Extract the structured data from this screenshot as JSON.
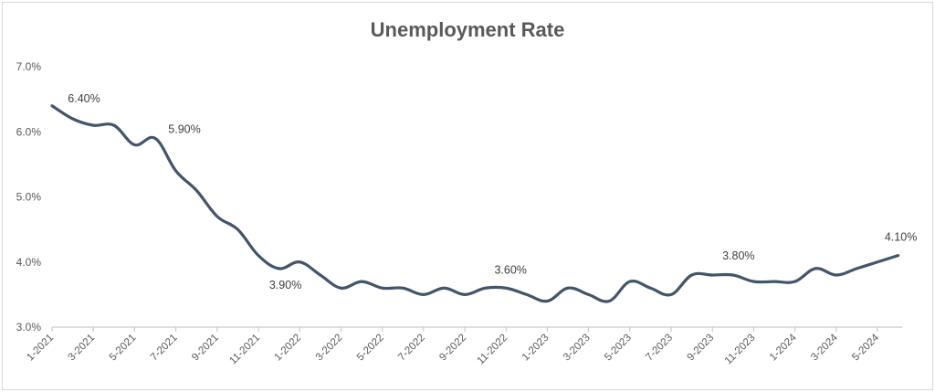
{
  "chart_data": {
    "type": "line",
    "title": "Unemployment Rate",
    "xlabel": "",
    "ylabel": "",
    "ylim": [
      3.0,
      7.0
    ],
    "yticks": [
      "3.0%",
      "4.0%",
      "5.0%",
      "6.0%",
      "7.0%"
    ],
    "grid": false,
    "legend": "none",
    "line_color": "#44546A",
    "x_tick_labels": [
      "1-2021",
      "3-2021",
      "5-2021",
      "7-2021",
      "9-2021",
      "11-2021",
      "1-2022",
      "3-2022",
      "5-2022",
      "7-2022",
      "9-2022",
      "11-2022",
      "1-2023",
      "3-2023",
      "5-2023",
      "7-2023",
      "9-2023",
      "11-2023",
      "1-2024",
      "3-2024",
      "5-2024"
    ],
    "x": [
      "1-2021",
      "2-2021",
      "3-2021",
      "4-2021",
      "5-2021",
      "6-2021",
      "7-2021",
      "8-2021",
      "9-2021",
      "10-2021",
      "11-2021",
      "12-2021",
      "1-2022",
      "2-2022",
      "3-2022",
      "4-2022",
      "5-2022",
      "6-2022",
      "7-2022",
      "8-2022",
      "9-2022",
      "10-2022",
      "11-2022",
      "12-2022",
      "1-2023",
      "2-2023",
      "3-2023",
      "4-2023",
      "5-2023",
      "6-2023",
      "7-2023",
      "8-2023",
      "9-2023",
      "10-2023",
      "11-2023",
      "12-2023",
      "1-2024",
      "2-2024",
      "3-2024",
      "4-2024",
      "5-2024",
      "6-2024"
    ],
    "series": [
      {
        "values": [
          6.4,
          6.2,
          6.1,
          6.1,
          5.8,
          5.9,
          5.4,
          5.1,
          4.7,
          4.5,
          4.1,
          3.9,
          4.0,
          3.8,
          3.6,
          3.7,
          3.6,
          3.6,
          3.5,
          3.6,
          3.5,
          3.6,
          3.6,
          3.5,
          3.4,
          3.6,
          3.5,
          3.4,
          3.7,
          3.6,
          3.5,
          3.8,
          3.8,
          3.8,
          3.7,
          3.7,
          3.7,
          3.9,
          3.8,
          3.9,
          4.0,
          4.1
        ]
      }
    ],
    "data_labels": [
      {
        "index": 0,
        "text": "6.40%"
      },
      {
        "index": 5,
        "text": "5.90%"
      },
      {
        "index": 11,
        "text": "3.90%"
      },
      {
        "index": 22,
        "text": "3.60%"
      },
      {
        "index": 33,
        "text": "3.80%"
      },
      {
        "index": 41,
        "text": "4.10%"
      }
    ]
  }
}
